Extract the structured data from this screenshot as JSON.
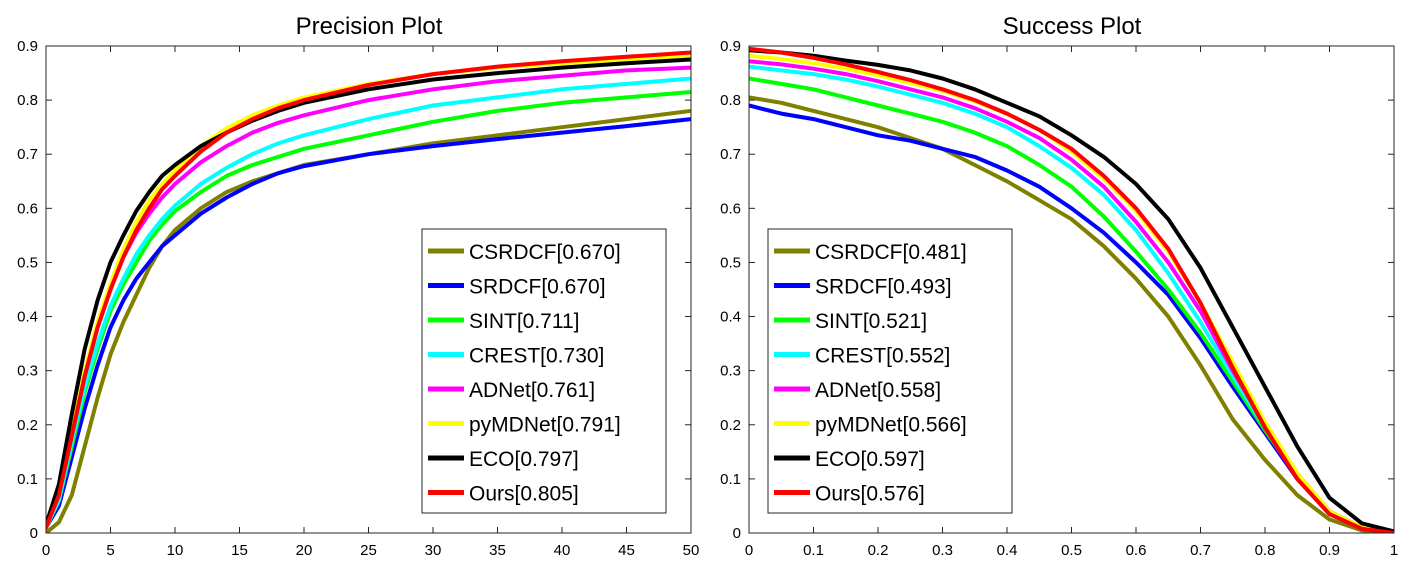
{
  "series_colors": {
    "CSRDCF": "#808000",
    "SRDCF": "#0000ff",
    "SINT": "#00ff00",
    "CREST": "#00ffff",
    "ADNet": "#ff00ff",
    "pyMDNet": "#ffff00",
    "ECO": "#000000",
    "Ours": "#ff0000"
  },
  "chart_data": [
    {
      "type": "line",
      "title": "Precision Plot",
      "xlim": [
        0,
        50
      ],
      "ylim": [
        0,
        0.9
      ],
      "xticks": [
        "0",
        "5",
        "10",
        "15",
        "20",
        "25",
        "30",
        "35",
        "40",
        "45",
        "50"
      ],
      "yticks": [
        "0",
        "0.1",
        "0.2",
        "0.3",
        "0.4",
        "0.5",
        "0.6",
        "0.7",
        "0.8",
        "0.9"
      ],
      "legend_position": "bottom-right",
      "x": [
        0,
        1,
        2,
        3,
        4,
        5,
        6,
        7,
        8,
        9,
        10,
        12,
        14,
        16,
        18,
        20,
        25,
        30,
        35,
        40,
        45,
        50
      ],
      "series": [
        {
          "name": "CSRDCF",
          "label": "CSRDCF[0.670]",
          "color": "#808000",
          "values": [
            0.0,
            0.02,
            0.07,
            0.16,
            0.25,
            0.33,
            0.39,
            0.44,
            0.49,
            0.53,
            0.56,
            0.6,
            0.63,
            0.65,
            0.665,
            0.68,
            0.7,
            0.72,
            0.735,
            0.75,
            0.765,
            0.78
          ]
        },
        {
          "name": "SRDCF",
          "label": "SRDCF[0.670]",
          "color": "#0000ff",
          "values": [
            0.01,
            0.05,
            0.14,
            0.23,
            0.31,
            0.38,
            0.43,
            0.47,
            0.5,
            0.53,
            0.55,
            0.59,
            0.62,
            0.645,
            0.665,
            0.678,
            0.7,
            0.715,
            0.728,
            0.74,
            0.752,
            0.765
          ]
        },
        {
          "name": "SINT",
          "label": "SINT[0.711]",
          "color": "#00ff00",
          "values": [
            0.01,
            0.06,
            0.16,
            0.26,
            0.34,
            0.41,
            0.46,
            0.5,
            0.54,
            0.57,
            0.595,
            0.63,
            0.66,
            0.68,
            0.695,
            0.71,
            0.735,
            0.76,
            0.78,
            0.795,
            0.805,
            0.815
          ]
        },
        {
          "name": "CREST",
          "label": "CREST[0.730]",
          "color": "#00ffff",
          "values": [
            0.01,
            0.06,
            0.17,
            0.27,
            0.35,
            0.42,
            0.47,
            0.515,
            0.55,
            0.58,
            0.605,
            0.645,
            0.675,
            0.7,
            0.72,
            0.735,
            0.765,
            0.79,
            0.805,
            0.82,
            0.83,
            0.84
          ]
        },
        {
          "name": "ADNet",
          "label": "ADNet[0.761]",
          "color": "#ff00ff",
          "values": [
            0.01,
            0.07,
            0.18,
            0.29,
            0.38,
            0.45,
            0.51,
            0.555,
            0.59,
            0.62,
            0.645,
            0.685,
            0.715,
            0.74,
            0.758,
            0.772,
            0.8,
            0.82,
            0.835,
            0.845,
            0.855,
            0.86
          ]
        },
        {
          "name": "pyMDNet",
          "label": "pyMDNet[0.791]",
          "color": "#ffff00",
          "values": [
            0.01,
            0.07,
            0.19,
            0.3,
            0.39,
            0.46,
            0.525,
            0.575,
            0.615,
            0.645,
            0.67,
            0.715,
            0.748,
            0.772,
            0.79,
            0.805,
            0.83,
            0.848,
            0.86,
            0.868,
            0.875,
            0.88
          ]
        },
        {
          "name": "ECO",
          "label": "ECO[0.797]",
          "color": "#000000",
          "values": [
            0.015,
            0.09,
            0.22,
            0.34,
            0.43,
            0.5,
            0.55,
            0.595,
            0.63,
            0.66,
            0.68,
            0.715,
            0.74,
            0.762,
            0.78,
            0.795,
            0.82,
            0.838,
            0.85,
            0.86,
            0.868,
            0.875
          ]
        },
        {
          "name": "Ours",
          "label": "Ours[0.805]",
          "color": "#ff0000",
          "values": [
            0.01,
            0.07,
            0.18,
            0.29,
            0.38,
            0.45,
            0.51,
            0.56,
            0.6,
            0.635,
            0.66,
            0.705,
            0.74,
            0.765,
            0.785,
            0.8,
            0.828,
            0.848,
            0.862,
            0.872,
            0.88,
            0.888
          ]
        }
      ]
    },
    {
      "type": "line",
      "title": "Success Plot",
      "xlim": [
        0,
        1
      ],
      "ylim": [
        0,
        0.9
      ],
      "xticks": [
        "0",
        "0.1",
        "0.2",
        "0.3",
        "0.4",
        "0.5",
        "0.6",
        "0.7",
        "0.8",
        "0.9",
        "1"
      ],
      "yticks": [
        "0",
        "0.1",
        "0.2",
        "0.3",
        "0.4",
        "0.5",
        "0.6",
        "0.7",
        "0.8",
        "0.9"
      ],
      "legend_position": "bottom-left",
      "x": [
        0,
        0.05,
        0.1,
        0.15,
        0.2,
        0.25,
        0.3,
        0.35,
        0.4,
        0.45,
        0.5,
        0.55,
        0.6,
        0.65,
        0.7,
        0.75,
        0.8,
        0.85,
        0.9,
        0.95,
        1
      ],
      "series": [
        {
          "name": "CSRDCF",
          "label": "CSRDCF[0.481]",
          "color": "#808000",
          "values": [
            0.805,
            0.795,
            0.78,
            0.765,
            0.75,
            0.73,
            0.71,
            0.68,
            0.65,
            0.615,
            0.58,
            0.53,
            0.47,
            0.4,
            0.31,
            0.21,
            0.135,
            0.07,
            0.025,
            0.005,
            0.0
          ]
        },
        {
          "name": "SRDCF",
          "label": "SRDCF[0.493]",
          "color": "#0000ff",
          "values": [
            0.79,
            0.775,
            0.765,
            0.75,
            0.735,
            0.725,
            0.71,
            0.695,
            0.67,
            0.64,
            0.6,
            0.555,
            0.5,
            0.44,
            0.36,
            0.27,
            0.185,
            0.1,
            0.035,
            0.008,
            0.0
          ]
        },
        {
          "name": "SINT",
          "label": "SINT[0.521]",
          "color": "#00ff00",
          "values": [
            0.84,
            0.83,
            0.82,
            0.805,
            0.79,
            0.775,
            0.76,
            0.74,
            0.715,
            0.68,
            0.64,
            0.585,
            0.52,
            0.45,
            0.37,
            0.28,
            0.19,
            0.105,
            0.04,
            0.01,
            0.0
          ]
        },
        {
          "name": "CREST",
          "label": "CREST[0.552]",
          "color": "#00ffff",
          "values": [
            0.862,
            0.855,
            0.848,
            0.838,
            0.825,
            0.81,
            0.795,
            0.775,
            0.75,
            0.715,
            0.675,
            0.625,
            0.56,
            0.48,
            0.39,
            0.29,
            0.195,
            0.11,
            0.04,
            0.01,
            0.0
          ]
        },
        {
          "name": "ADNet",
          "label": "ADNet[0.558]",
          "color": "#ff00ff",
          "values": [
            0.872,
            0.866,
            0.858,
            0.848,
            0.835,
            0.82,
            0.805,
            0.785,
            0.76,
            0.73,
            0.69,
            0.64,
            0.575,
            0.5,
            0.41,
            0.3,
            0.2,
            0.11,
            0.04,
            0.01,
            0.0
          ]
        },
        {
          "name": "pyMDNet",
          "label": "pyMDNet[0.566]",
          "color": "#ffff00",
          "values": [
            0.882,
            0.876,
            0.868,
            0.858,
            0.846,
            0.832,
            0.817,
            0.798,
            0.775,
            0.745,
            0.705,
            0.655,
            0.595,
            0.52,
            0.425,
            0.315,
            0.205,
            0.11,
            0.04,
            0.01,
            0.0
          ]
        },
        {
          "name": "ECO",
          "label": "ECO[0.597]",
          "color": "#000000",
          "values": [
            0.892,
            0.888,
            0.882,
            0.873,
            0.865,
            0.855,
            0.84,
            0.82,
            0.795,
            0.77,
            0.735,
            0.695,
            0.645,
            0.58,
            0.49,
            0.38,
            0.27,
            0.16,
            0.065,
            0.018,
            0.003
          ]
        },
        {
          "name": "Ours",
          "label": "Ours[0.576]",
          "color": "#ff0000",
          "values": [
            0.895,
            0.888,
            0.878,
            0.866,
            0.852,
            0.837,
            0.82,
            0.8,
            0.775,
            0.745,
            0.71,
            0.66,
            0.6,
            0.525,
            0.425,
            0.305,
            0.195,
            0.1,
            0.035,
            0.008,
            0.0
          ]
        }
      ]
    }
  ]
}
